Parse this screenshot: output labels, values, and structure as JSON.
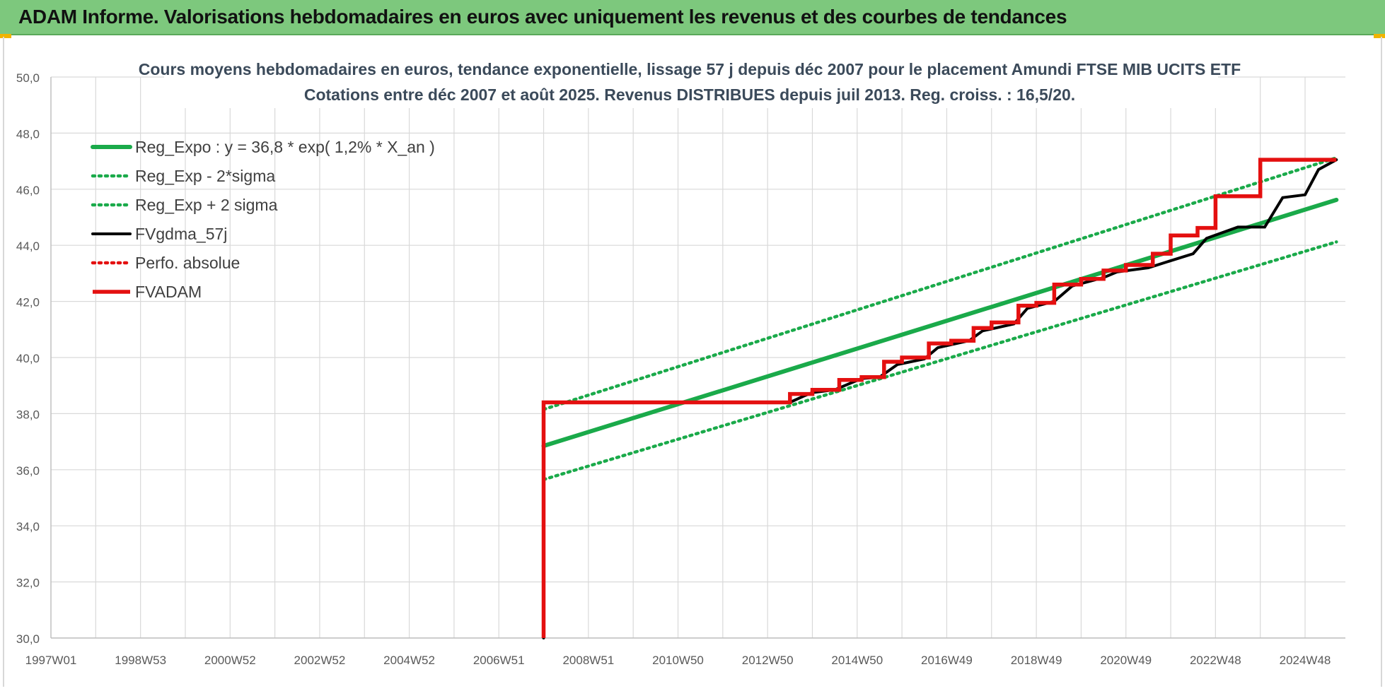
{
  "header": {
    "title": "ADAM Informe. Valorisations hebdomadaires en euros avec uniquement les revenus et des courbes de tendances"
  },
  "colors": {
    "header_bg": "#7dc87d",
    "title_text": "#3b4a5a",
    "green": "#1aaa4a",
    "black": "#000000",
    "red": "#e41010",
    "grid": "#d9d9d9"
  },
  "chart_data": {
    "type": "line",
    "title": "Cours moyens hebdomadaires en euros, tendance exponentielle, lissage 57 j depuis déc 2007 pour le placement Amundi FTSE MIB  UCITS ETF",
    "subtitle": "Cotations entre déc 2007 et août 2025. Revenus DISTRIBUES depuis juil 2013. Reg. croiss. : 16,5/20.",
    "xlabel": "",
    "ylabel": "",
    "ylim": [
      30,
      50
    ],
    "xlim": [
      1997.0,
      2025.9
    ],
    "grid": true,
    "legend_position": "top-left",
    "y_ticks": [
      "30,0",
      "32,0",
      "34,0",
      "36,0",
      "38,0",
      "40,0",
      "42,0",
      "44,0",
      "46,0",
      "48,0",
      "50,0"
    ],
    "y_tick_values": [
      30,
      32,
      34,
      36,
      38,
      40,
      42,
      44,
      46,
      48,
      50
    ],
    "x_tick_labels": [
      "1997W01",
      "1998W53",
      "2000W52",
      "2002W52",
      "2004W52",
      "2006W51",
      "2008W51",
      "2010W50",
      "2012W50",
      "2014W50",
      "2016W49",
      "2018W49",
      "2020W49",
      "2022W48",
      "2024W48"
    ],
    "x_tick_values": [
      1997.0,
      1999.0,
      2001.0,
      2003.0,
      2005.0,
      2007.0,
      2009.0,
      2011.0,
      2013.0,
      2015.0,
      2017.0,
      2019.0,
      2021.0,
      2023.0,
      2025.0
    ],
    "series": [
      {
        "name": "Reg_Expo : y = 36,8 * exp( 1,2% *  X_an )",
        "color": "#1aaa4a",
        "style": "solid",
        "x": [
          2008.0,
          2025.7
        ],
        "y": [
          36.85,
          45.62
        ]
      },
      {
        "name": "Reg_Exp - 2*sigma",
        "color": "#1aaa4a",
        "style": "dotted",
        "x": [
          2008.0,
          2025.7
        ],
        "y": [
          35.65,
          44.12
        ]
      },
      {
        "name": "Reg_Exp + 2 sigma",
        "color": "#1aaa4a",
        "style": "dotted",
        "x": [
          2008.0,
          2025.7
        ],
        "y": [
          38.15,
          47.12
        ]
      },
      {
        "name": "FVgdma_57j",
        "color": "#000000",
        "style": "solid",
        "x": [
          2008.0,
          2008.0,
          2013.5,
          2013.8,
          2014.0,
          2014.5,
          2014.8,
          2015.1,
          2015.5,
          2015.9,
          2016.5,
          2016.8,
          2017.5,
          2017.8,
          2018.5,
          2018.8,
          2019.4,
          2019.8,
          2020.5,
          2020.8,
          2021.5,
          2021.9,
          2022.5,
          2022.8,
          2023.5,
          2024.1,
          2024.5,
          2025.0,
          2025.3,
          2025.7
        ],
        "y": [
          30.0,
          38.4,
          38.4,
          38.62,
          38.75,
          38.85,
          39.05,
          39.25,
          39.3,
          39.75,
          39.95,
          40.35,
          40.6,
          40.95,
          41.2,
          41.75,
          42.0,
          42.55,
          42.85,
          43.05,
          43.2,
          43.4,
          43.7,
          44.25,
          44.65,
          44.65,
          45.7,
          45.8,
          46.7,
          47.05
        ]
      },
      {
        "name": "Perfo. absolue",
        "color": "#e41010",
        "style": "dotted",
        "x": [],
        "y": []
      },
      {
        "name": "FVADAM",
        "color": "#e41010",
        "style": "solid",
        "x": [
          2008.0,
          2008.0,
          2013.5,
          2013.5,
          2014.0,
          2014.0,
          2014.6,
          2014.6,
          2015.1,
          2015.1,
          2015.6,
          2015.6,
          2016.0,
          2016.0,
          2016.6,
          2016.6,
          2017.1,
          2017.1,
          2017.6,
          2017.6,
          2018.0,
          2018.0,
          2018.6,
          2018.6,
          2019.0,
          2019.0,
          2019.4,
          2019.4,
          2020.0,
          2020.0,
          2020.5,
          2020.5,
          2021.0,
          2021.0,
          2021.6,
          2021.6,
          2022.0,
          2022.0,
          2022.6,
          2022.6,
          2023.0,
          2023.0,
          2024.0,
          2024.0,
          2025.0,
          2025.0,
          2025.7
        ],
        "y": [
          30.0,
          38.4,
          38.4,
          38.7,
          38.7,
          38.85,
          38.85,
          39.2,
          39.2,
          39.3,
          39.3,
          39.85,
          39.85,
          40.0,
          40.0,
          40.5,
          40.5,
          40.6,
          40.6,
          41.05,
          41.05,
          41.25,
          41.25,
          41.85,
          41.85,
          41.95,
          41.95,
          42.6,
          42.6,
          42.8,
          42.8,
          43.1,
          43.1,
          43.3,
          43.3,
          43.7,
          43.7,
          44.35,
          44.35,
          44.62,
          44.62,
          45.75,
          45.75,
          47.05,
          47.05,
          47.05,
          47.05
        ]
      }
    ]
  }
}
